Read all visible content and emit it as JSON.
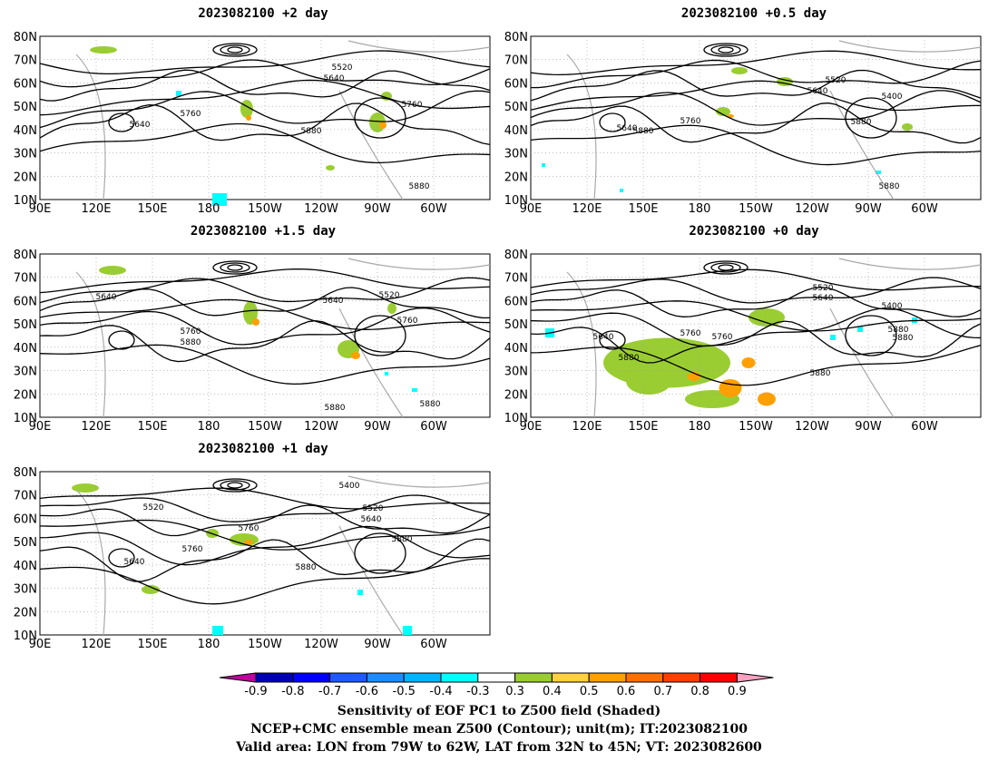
{
  "panels": [
    {
      "title": "2023082100 +2 day",
      "contour_labels": [
        "5520",
        "5640",
        "5640",
        "5760",
        "5880",
        "5760",
        "5880"
      ]
    },
    {
      "title": "2023082100 +0.5 day",
      "contour_labels": [
        "5520",
        "5640",
        "5400",
        "5640",
        "5880",
        "5760",
        "5880",
        "5880"
      ]
    },
    {
      "title": "2023082100 +1.5 day",
      "contour_labels": [
        "5640",
        "5640",
        "5520",
        "5760",
        "5880",
        "5760",
        "5880",
        "5880"
      ]
    },
    {
      "title": "2023082100 +0 day",
      "contour_labels": [
        "5520",
        "5640",
        "5400",
        "5640",
        "5760",
        "5880",
        "5760",
        "5880",
        "5880",
        "5880"
      ]
    },
    {
      "title": "2023082100 +1 day",
      "contour_labels": [
        "5400",
        "5520",
        "5520",
        "5640",
        "5640",
        "5760",
        "5760",
        "5880",
        "5880"
      ]
    }
  ],
  "axes": {
    "lat_labels": [
      "80N",
      "70N",
      "60N",
      "50N",
      "40N",
      "30N",
      "20N",
      "10N"
    ],
    "lon_labels": [
      "90E",
      "120E",
      "150E",
      "180",
      "150W",
      "120W",
      "90W",
      "60W"
    ]
  },
  "colorbar": {
    "labels": [
      "-0.9",
      "-0.8",
      "-0.7",
      "-0.6",
      "-0.5",
      "-0.4",
      "-0.3",
      "0.3",
      "0.4",
      "0.5",
      "0.6",
      "0.7",
      "0.8",
      "0.9"
    ],
    "colors": [
      "#0000b4",
      "#0000ff",
      "#1e5aff",
      "#1e8cff",
      "#00b4ff",
      "#00ffff",
      "#ffffff",
      "#9acd32",
      "#ffd040",
      "#ffa000",
      "#ff7000",
      "#ff4000",
      "#ff0000"
    ],
    "left_arrow": "#c000a0",
    "right_arrow": "#ffa0c0"
  },
  "caption": {
    "line1": "Sensitivity of EOF PC1 to Z500 field (Shaded)",
    "line2": "NCEP+CMC ensemble mean Z500 (Contour); unit(m); IT:2023082100",
    "line3": "Valid area: LON from 79W to 62W, LAT from 32N to 45N; VT: 2023082600"
  }
}
